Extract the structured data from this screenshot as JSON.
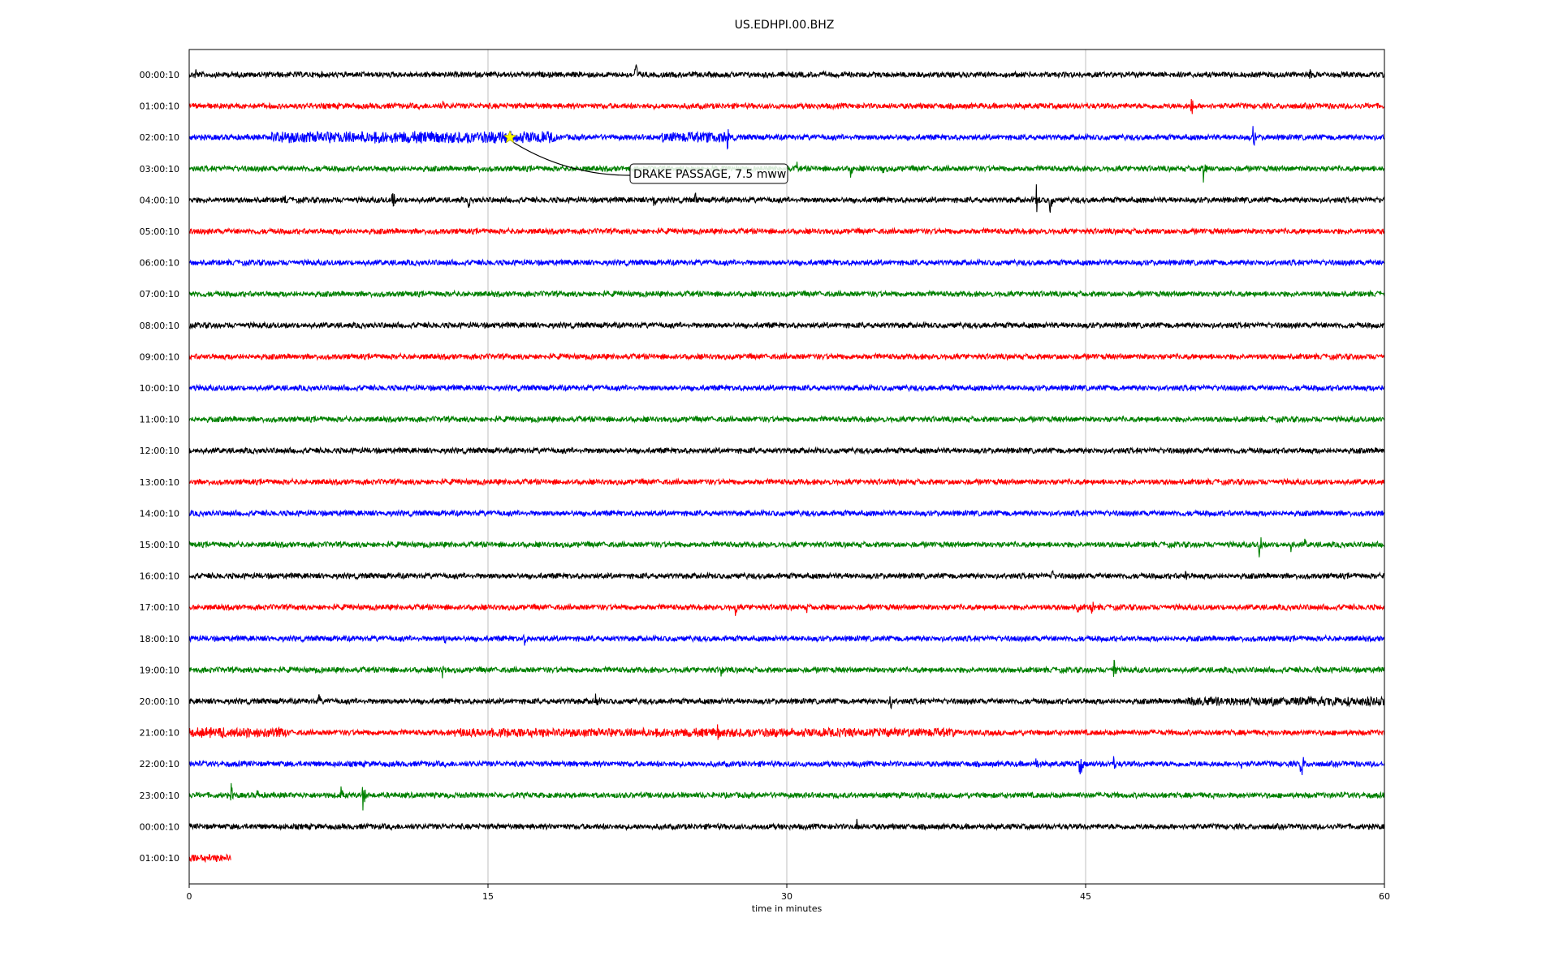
{
  "chart_data": {
    "type": "line",
    "title": "US.EDHPI.00.BHZ",
    "xlabel": "time in minutes",
    "ylabel": "",
    "xlim": [
      0,
      60
    ],
    "xticks": [
      0,
      15,
      30,
      45,
      60
    ],
    "grid": "vertical",
    "legend": "none",
    "line_colors": [
      "#000000",
      "#ff0000",
      "#0000ff",
      "#008000"
    ],
    "rows": [
      {
        "label": "00:00:10",
        "end_min": 60,
        "events": [
          {
            "t": 0.3,
            "amp": 14
          },
          {
            "t": 22.4,
            "amp": 22
          },
          {
            "t": 56.2,
            "amp": 14
          }
        ]
      },
      {
        "label": "01:00:10",
        "end_min": 60,
        "events": [
          {
            "t": 12.7,
            "amp": 10
          },
          {
            "t": 50.3,
            "amp": 18
          }
        ]
      },
      {
        "label": "02:00:10",
        "end_min": 60,
        "events": [
          {
            "t": 27.0,
            "amp": 22
          },
          {
            "t": 53.4,
            "amp": 18
          }
        ],
        "bursts": [
          {
            "from": 4.0,
            "to": 18.4,
            "amp": 8
          },
          {
            "from": 23.7,
            "to": 27.0,
            "amp": 7
          }
        ]
      },
      {
        "label": "03:00:10",
        "end_min": 60,
        "events": [
          {
            "t": 5.7,
            "amp": 6
          },
          {
            "t": 30.5,
            "amp": 10
          },
          {
            "t": 33.2,
            "amp": 12
          },
          {
            "t": 34.8,
            "amp": 10
          },
          {
            "t": 50.9,
            "amp": 22
          }
        ]
      },
      {
        "label": "04:00:10",
        "end_min": 60,
        "events": [
          {
            "t": 4.8,
            "amp": 10
          },
          {
            "t": 10.2,
            "amp": 18
          },
          {
            "t": 14.0,
            "amp": 14
          },
          {
            "t": 23.3,
            "amp": 20
          },
          {
            "t": 25.4,
            "amp": 12
          },
          {
            "t": 42.5,
            "amp": 26
          },
          {
            "t": 43.2,
            "amp": 20
          }
        ]
      },
      {
        "label": "05:00:10",
        "end_min": 60,
        "events": []
      },
      {
        "label": "06:00:10",
        "end_min": 60,
        "events": []
      },
      {
        "label": "07:00:10",
        "end_min": 60,
        "events": []
      },
      {
        "label": "08:00:10",
        "end_min": 60,
        "events": []
      },
      {
        "label": "09:00:10",
        "end_min": 60,
        "events": []
      },
      {
        "label": "10:00:10",
        "end_min": 60,
        "events": []
      },
      {
        "label": "11:00:10",
        "end_min": 60,
        "events": []
      },
      {
        "label": "12:00:10",
        "end_min": 60,
        "events": []
      },
      {
        "label": "13:00:10",
        "end_min": 60,
        "events": []
      },
      {
        "label": "14:00:10",
        "end_min": 60,
        "events": []
      },
      {
        "label": "15:00:10",
        "end_min": 60,
        "events": [
          {
            "t": 53.7,
            "amp": 24
          },
          {
            "t": 55.3,
            "amp": 10
          },
          {
            "t": 56.0,
            "amp": 8
          }
        ]
      },
      {
        "label": "16:00:10",
        "end_min": 60,
        "events": [
          {
            "t": 43.3,
            "amp": 12
          },
          {
            "t": 50.0,
            "amp": 10
          }
        ]
      },
      {
        "label": "17:00:10",
        "end_min": 60,
        "events": [
          {
            "t": 27.4,
            "amp": 14
          },
          {
            "t": 31.0,
            "amp": 8
          },
          {
            "t": 32.0,
            "amp": 8
          },
          {
            "t": 44.6,
            "amp": 16
          },
          {
            "t": 45.3,
            "amp": 14
          }
        ]
      },
      {
        "label": "18:00:10",
        "end_min": 60,
        "events": [
          {
            "t": 0.3,
            "amp": 8
          },
          {
            "t": 12.8,
            "amp": 10
          },
          {
            "t": 16.8,
            "amp": 12
          }
        ]
      },
      {
        "label": "19:00:10",
        "end_min": 60,
        "events": [
          {
            "t": 12.7,
            "amp": 12
          },
          {
            "t": 26.7,
            "amp": 12
          },
          {
            "t": 46.4,
            "amp": 26
          },
          {
            "t": 56.6,
            "amp": 8
          }
        ]
      },
      {
        "label": "20:00:10",
        "end_min": 60,
        "events": [
          {
            "t": 6.5,
            "amp": 12
          },
          {
            "t": 20.4,
            "amp": 14
          },
          {
            "t": 35.2,
            "amp": 16
          },
          {
            "t": 59.1,
            "amp": 12
          }
        ],
        "bursts": [
          {
            "from": 50.0,
            "to": 60.0,
            "amp": 6
          }
        ]
      },
      {
        "label": "21:00:10",
        "end_min": 60,
        "events": [
          {
            "t": 26.5,
            "amp": 14
          },
          {
            "t": 38.3,
            "amp": 10
          }
        ],
        "bursts": [
          {
            "from": 0.0,
            "to": 5.0,
            "amp": 7
          },
          {
            "from": 13.3,
            "to": 38.3,
            "amp": 6
          }
        ]
      },
      {
        "label": "22:00:10",
        "end_min": 60,
        "events": [
          {
            "t": 42.5,
            "amp": 12
          },
          {
            "t": 44.7,
            "amp": 26
          },
          {
            "t": 46.4,
            "amp": 12
          },
          {
            "t": 52.8,
            "amp": 10
          },
          {
            "t": 55.8,
            "amp": 30
          }
        ]
      },
      {
        "label": "23:00:10",
        "end_min": 60,
        "events": [
          {
            "t": 2.1,
            "amp": 16
          },
          {
            "t": 3.4,
            "amp": 10
          },
          {
            "t": 7.6,
            "amp": 14
          },
          {
            "t": 8.7,
            "amp": 26
          }
        ]
      },
      {
        "label": "00:00:10",
        "end_min": 60,
        "events": [
          {
            "t": 33.5,
            "amp": 12
          }
        ]
      },
      {
        "label": "01:00:10",
        "end_min": 2.1,
        "events": [],
        "bursts": [
          {
            "from": 0.0,
            "to": 2.1,
            "amp": 5
          }
        ]
      }
    ],
    "annotations": [
      {
        "text": "DRAKE PASSAGE, 7.5 mww",
        "row": 2,
        "t": 16.1,
        "marker": "star",
        "marker_color": "#ffff00"
      }
    ]
  }
}
